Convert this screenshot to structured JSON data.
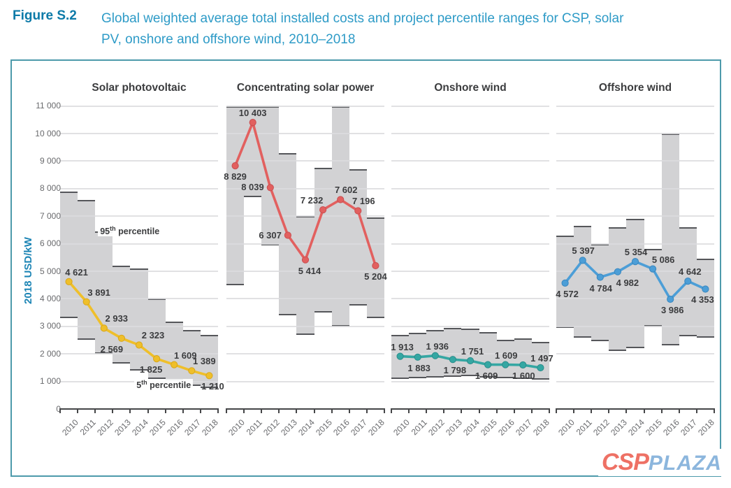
{
  "header": {
    "figure_label": "Figure S.2",
    "title_lines": [
      "Global weighted average total installed costs and project percentile ranges for CSP, solar",
      "PV, onshore and offshore wind, 2010–2018"
    ]
  },
  "watermark": {
    "csp": "CSP",
    "plaza": "PLAZA"
  },
  "chart_data": {
    "type": "line",
    "x": [
      2010,
      2011,
      2012,
      2013,
      2014,
      2015,
      2016,
      2017,
      2018
    ],
    "ylabel": "2018 USD/kW",
    "ylim": [
      0,
      11000
    ],
    "y_tick_step": 1000,
    "grid": true,
    "legend_position": "none",
    "band_color": "#d2d2d4",
    "panels": [
      {
        "title": "Solar photovoltaic",
        "color": "#efbf2a",
        "ring": "#d8a61a",
        "values": [
          4621,
          3891,
          2933,
          2569,
          2323,
          1825,
          1609,
          1389,
          1210
        ],
        "band_low": [
          3300,
          2500,
          2000,
          1650,
          1400,
          1100,
          1050,
          850,
          750
        ],
        "band_high": [
          7900,
          7600,
          6450,
          5200,
          5100,
          4000,
          3170,
          2870,
          2680
        ],
        "label_pos": [
          "above",
          "above",
          "above",
          "below",
          "above",
          "below",
          "above",
          "above",
          "below"
        ],
        "label_dx": [
          11,
          18,
          18,
          -14,
          20,
          -8,
          16,
          18,
          5
        ],
        "annotations": [
          {
            "base": "95",
            "sup": "th",
            "rest": " percentile",
            "x_frac": 0.24,
            "value": 6450
          },
          {
            "base": "5",
            "sup": "th",
            "rest": " percentile",
            "x_frac": 0.47,
            "value": 870
          }
        ]
      },
      {
        "title": "Concentrating solar power",
        "color": "#e2605f",
        "ring": "#c94f52",
        "values": [
          8829,
          10403,
          8039,
          6307,
          5414,
          7232,
          7602,
          7196,
          5204
        ],
        "band_low": [
          4500,
          7700,
          5950,
          3400,
          2700,
          3500,
          3000,
          3750,
          3300
        ],
        "band_high": [
          11000,
          11000,
          11000,
          9300,
          7000,
          8750,
          11000,
          8700,
          6950
        ],
        "label_pos": [
          "below",
          "above",
          "left",
          "left",
          "below",
          "above",
          "above",
          "above",
          "below"
        ],
        "label_dx": [
          0,
          0,
          0,
          0,
          6,
          -16,
          8,
          8,
          0
        ],
        "annotations": []
      },
      {
        "title": "Onshore wind",
        "color": "#35a7a3",
        "ring": "#2a8d8b",
        "values": [
          1913,
          1883,
          1936,
          1798,
          1751,
          1609,
          1609,
          1600,
          1497
        ],
        "band_low": [
          1080,
          1120,
          1130,
          1170,
          1190,
          1140,
          1110,
          1090,
          1060
        ],
        "band_high": [
          2700,
          2760,
          2870,
          2950,
          2920,
          2800,
          2520,
          2560,
          2430
        ],
        "label_pos": [
          "above",
          "below",
          "above",
          "below",
          "above",
          "below",
          "above",
          "below",
          "above"
        ],
        "label_dx": [
          3,
          2,
          3,
          3,
          3,
          -2,
          1,
          1,
          2
        ],
        "annotations": []
      },
      {
        "title": "Offshore wind",
        "color": "#4c9ed7",
        "ring": "#3a87bf",
        "values": [
          4572,
          5397,
          4784,
          4982,
          5354,
          5086,
          3986,
          4642,
          4353
        ],
        "band_low": [
          2950,
          2600,
          2450,
          2100,
          2200,
          3000,
          2300,
          2650,
          2600
        ],
        "band_high": [
          6300,
          6650,
          6000,
          6600,
          6900,
          5800,
          10000,
          6600,
          5450
        ],
        "label_pos": [
          "below",
          "above",
          "below",
          "below",
          "above",
          "above",
          "below",
          "above",
          "below"
        ],
        "label_dx": [
          3,
          1,
          1,
          14,
          1,
          15,
          3,
          3,
          -4
        ],
        "annotations": []
      }
    ]
  }
}
